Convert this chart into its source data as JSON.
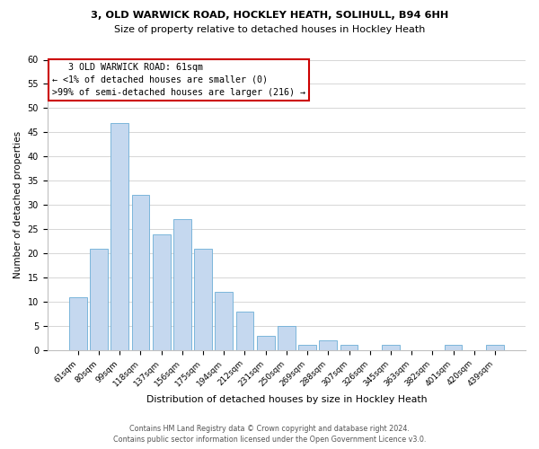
{
  "title1": "3, OLD WARWICK ROAD, HOCKLEY HEATH, SOLIHULL, B94 6HH",
  "title2": "Size of property relative to detached houses in Hockley Heath",
  "xlabel": "Distribution of detached houses by size in Hockley Heath",
  "ylabel": "Number of detached properties",
  "bin_labels": [
    "61sqm",
    "80sqm",
    "99sqm",
    "118sqm",
    "137sqm",
    "156sqm",
    "175sqm",
    "194sqm",
    "212sqm",
    "231sqm",
    "250sqm",
    "269sqm",
    "288sqm",
    "307sqm",
    "326sqm",
    "345sqm",
    "363sqm",
    "382sqm",
    "401sqm",
    "420sqm",
    "439sqm"
  ],
  "bar_values": [
    11,
    21,
    47,
    32,
    24,
    27,
    21,
    12,
    8,
    3,
    5,
    1,
    2,
    1,
    0,
    1,
    0,
    0,
    1,
    0,
    1
  ],
  "bar_color": "#c5d8ef",
  "bar_edge_color": "#6baed6",
  "ylim": [
    0,
    60
  ],
  "yticks": [
    0,
    5,
    10,
    15,
    20,
    25,
    30,
    35,
    40,
    45,
    50,
    55,
    60
  ],
  "annotation_title": "3 OLD WARWICK ROAD: 61sqm",
  "annotation_line1": "← <1% of detached houses are smaller (0)",
  "annotation_line2": ">99% of semi-detached houses are larger (216) →",
  "annotation_box_color": "#ffffff",
  "annotation_box_edgecolor": "#cc0000",
  "footer1": "Contains HM Land Registry data © Crown copyright and database right 2024.",
  "footer2": "Contains public sector information licensed under the Open Government Licence v3.0."
}
